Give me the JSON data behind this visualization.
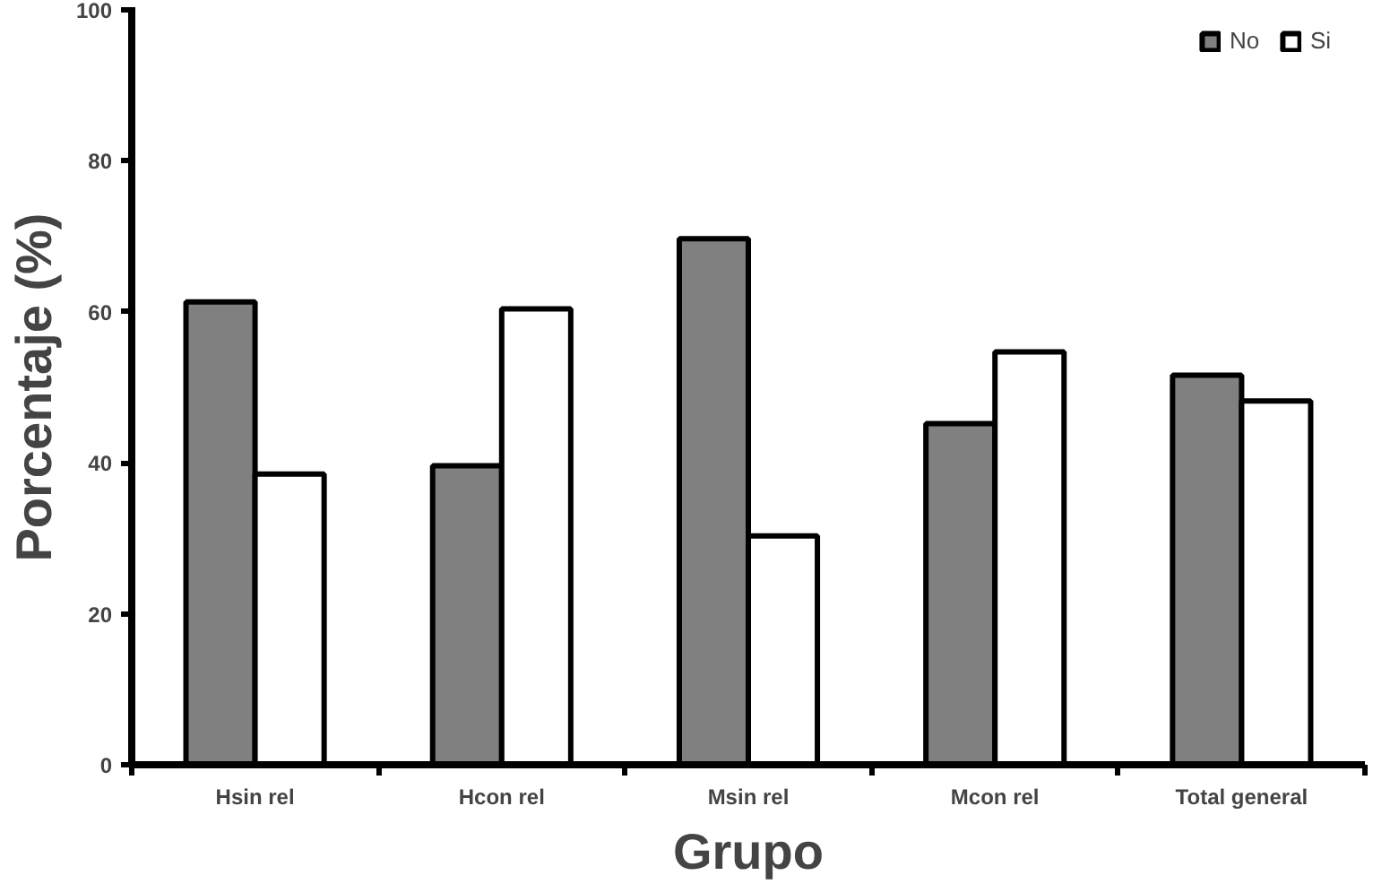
{
  "chart_data": {
    "type": "bar",
    "xlabel": "Grupo",
    "ylabel": "Porcentaje (%)",
    "categories": [
      "Hsin rel",
      "Hcon rel",
      "Msin rel",
      "Mcon rel",
      "Total general"
    ],
    "series": [
      {
        "name": "No",
        "color": "#808080",
        "values": [
          61.3,
          39.6,
          69.7,
          45.2,
          51.6
        ]
      },
      {
        "name": "Si",
        "color": "#ffffff",
        "values": [
          38.5,
          60.4,
          30.3,
          54.7,
          48.2
        ]
      }
    ],
    "ylim": [
      0,
      100
    ],
    "yticks": [
      0,
      20,
      40,
      60,
      80,
      100
    ],
    "grid": false,
    "legend": "top right"
  }
}
